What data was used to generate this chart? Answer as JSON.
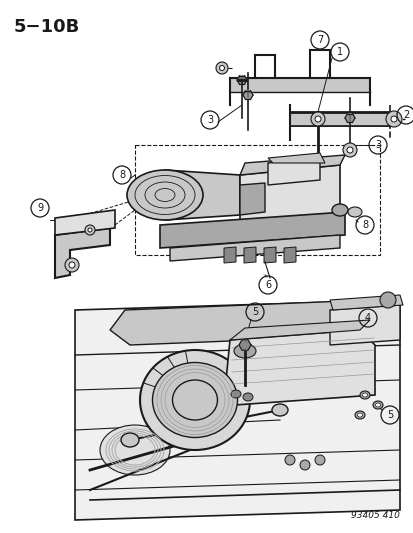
{
  "title": "5−10B",
  "figure_id": "93405 410",
  "bg_color": "#ffffff",
  "lc": "#1a1a1a",
  "gray1": "#c8c8c8",
  "gray2": "#a8a8a8",
  "gray3": "#e0e0e0",
  "gray4": "#888888",
  "fig_w": 4.14,
  "fig_h": 5.33,
  "dpi": 100
}
